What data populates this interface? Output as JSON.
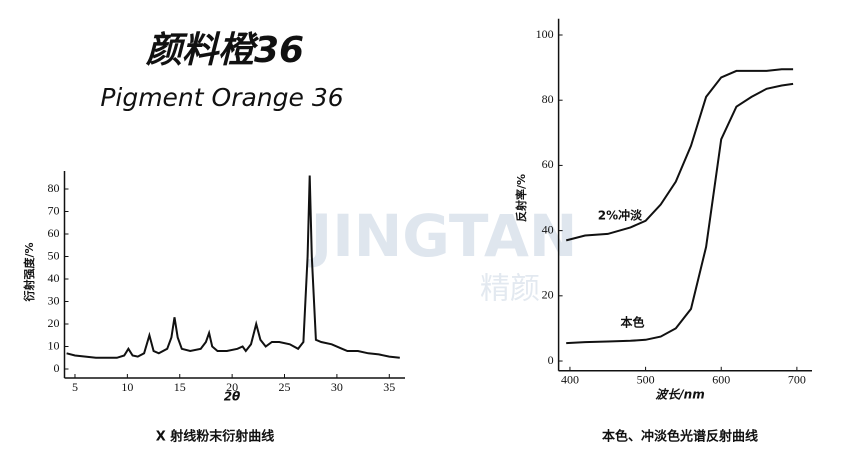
{
  "header": {
    "title": "颜料橙36",
    "subtitle": "Pigment Orange 36",
    "watermark": "JINGTAN",
    "watermark_cn": "精颜"
  },
  "chart_data": [
    {
      "type": "line",
      "caption": "X 射线粉末衍射曲线",
      "x_label": "2θ",
      "y_label": "衍射强度/%",
      "xlim": [
        4,
        36.5
      ],
      "ylim": [
        -4,
        88
      ],
      "xticks": [
        5,
        10,
        15,
        20,
        25,
        30,
        35
      ],
      "yticks": [
        0,
        10,
        20,
        30,
        40,
        50,
        60,
        70,
        80
      ],
      "x": [
        4.2,
        5,
        6,
        7,
        8,
        9,
        9.7,
        10.1,
        10.5,
        11,
        11.6,
        12.1,
        12.5,
        13,
        13.8,
        14.2,
        14.5,
        14.8,
        15.2,
        16,
        17,
        17.5,
        17.8,
        18.1,
        18.6,
        19.5,
        20.5,
        21,
        21.3,
        21.8,
        22.3,
        22.7,
        23.2,
        23.8,
        24.5,
        25.5,
        26.3,
        26.8,
        27.2,
        27.4,
        27.6,
        28,
        28.5,
        29.5,
        30.5,
        31,
        32,
        33,
        34,
        35,
        36
      ],
      "series": [
        {
          "color": "#111111",
          "values": [
            7,
            6,
            5.5,
            5,
            5,
            5,
            6,
            9,
            6,
            5.5,
            7,
            15,
            8,
            7,
            9,
            14,
            23,
            14,
            9,
            8,
            9,
            12,
            16,
            10,
            8,
            8,
            9,
            10,
            8,
            11,
            20,
            13,
            10,
            12,
            12,
            11,
            9,
            12,
            50,
            86,
            50,
            13,
            12,
            11,
            9,
            8,
            8,
            7,
            6.5,
            5.5,
            5
          ]
        }
      ]
    },
    {
      "type": "line",
      "caption": "本色、冲淡色光谱反射曲线",
      "x_label": "波长/nm",
      "y_label": "反射率/%",
      "xlim": [
        385,
        720
      ],
      "ylim": [
        -3,
        105
      ],
      "xticks": [
        400,
        500,
        600,
        700
      ],
      "yticks": [
        0,
        20,
        40,
        60,
        80,
        100
      ],
      "x": [
        395,
        420,
        450,
        480,
        500,
        520,
        540,
        560,
        580,
        600,
        620,
        640,
        660,
        680,
        695
      ],
      "series": [
        {
          "name": "2%冲淡",
          "color": "#111111",
          "values": [
            37,
            38.5,
            39,
            41,
            43,
            48,
            55,
            66,
            81,
            87,
            89,
            89,
            89,
            89.5,
            89.5
          ]
        },
        {
          "name": "本色",
          "color": "#111111",
          "values": [
            5.5,
            5.8,
            6,
            6.2,
            6.5,
            7.5,
            10,
            16,
            35,
            68,
            78,
            81,
            83.5,
            84.5,
            85
          ]
        }
      ]
    }
  ]
}
